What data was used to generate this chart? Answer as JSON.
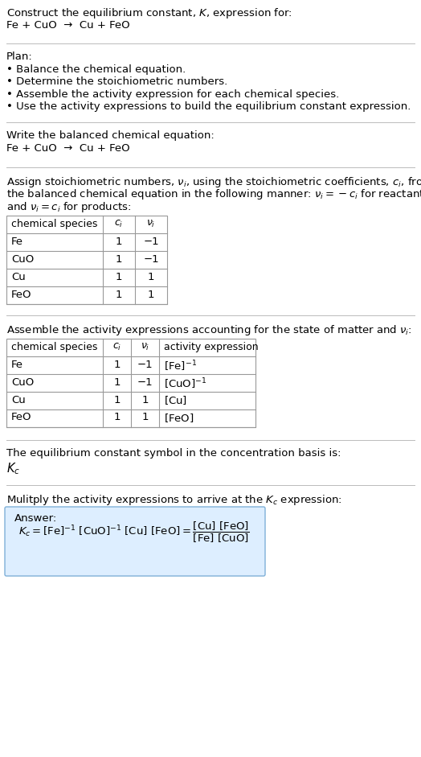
{
  "title_line1": "Construct the equilibrium constant, $K$, expression for:",
  "title_line2": "Fe + CuO  →  Cu + FeO",
  "plan_header": "Plan:",
  "plan_bullets": [
    "• Balance the chemical equation.",
    "• Determine the stoichiometric numbers.",
    "• Assemble the activity expression for each chemical species.",
    "• Use the activity expressions to build the equilibrium constant expression."
  ],
  "balanced_eq_header": "Write the balanced chemical equation:",
  "balanced_eq": "Fe + CuO  →  Cu + FeO",
  "stoich_intro1": "Assign stoichiometric numbers, $\\nu_i$, using the stoichiometric coefficients, $c_i$, from",
  "stoich_intro2": "the balanced chemical equation in the following manner: $\\nu_i = -c_i$ for reactants",
  "stoich_intro3": "and $\\nu_i = c_i$ for products:",
  "table1_headers": [
    "chemical species",
    "$c_i$",
    "$\\nu_i$"
  ],
  "table1_rows": [
    [
      "Fe",
      "1",
      "−1"
    ],
    [
      "CuO",
      "1",
      "−1"
    ],
    [
      "Cu",
      "1",
      "1"
    ],
    [
      "FeO",
      "1",
      "1"
    ]
  ],
  "activity_intro": "Assemble the activity expressions accounting for the state of matter and $\\nu_i$:",
  "table2_headers": [
    "chemical species",
    "$c_i$",
    "$\\nu_i$",
    "activity expression"
  ],
  "table2_rows": [
    [
      "Fe",
      "1",
      "−1",
      "$[\\mathrm{Fe}]^{-1}$"
    ],
    [
      "CuO",
      "1",
      "−1",
      "$[\\mathrm{CuO}]^{-1}$"
    ],
    [
      "Cu",
      "1",
      "1",
      "$[\\mathrm{Cu}]$"
    ],
    [
      "FeO",
      "1",
      "1",
      "$[\\mathrm{FeO}]$"
    ]
  ],
  "Kc_intro": "The equilibrium constant symbol in the concentration basis is:",
  "Kc_symbol": "$K_c$",
  "multiply_intro": "Mulitply the activity expressions to arrive at the $K_c$ expression:",
  "answer_label": "Answer:",
  "answer_box_color": "#ddeeff",
  "answer_box_border": "#7fb0d8",
  "bg_color": "#ffffff",
  "text_color": "#000000",
  "table_line_color": "#999999",
  "section_line_color": "#bbbbbb"
}
